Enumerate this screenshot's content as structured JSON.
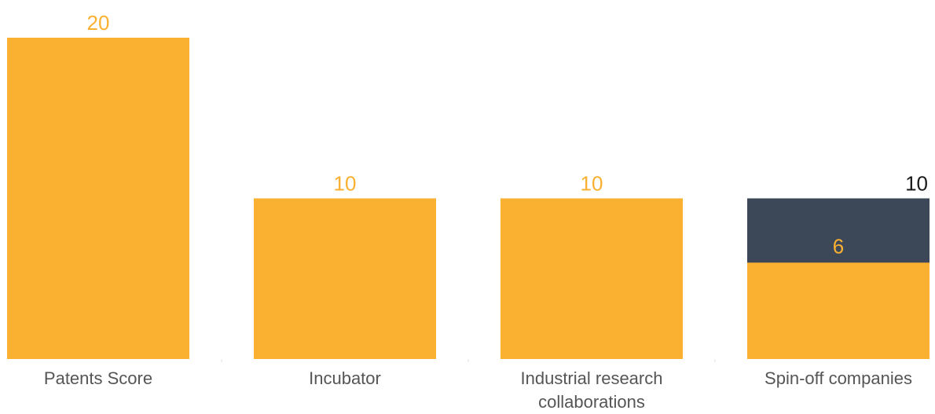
{
  "colors": {
    "accent": "#FAB030",
    "max_segment": "#3C4858",
    "tick_color": "#555555",
    "max_label_color": "#1A1A1A"
  },
  "chart_data": {
    "type": "bar",
    "categories": [
      "Patents Score",
      "Incubator",
      "Industrial research collaborations",
      "Spin-off companies"
    ],
    "category_lines": [
      [
        "Patents Score"
      ],
      [
        "Incubator"
      ],
      [
        "Industrial research",
        "collaborations"
      ],
      [
        "Spin-off companies"
      ]
    ],
    "series": [
      {
        "values": [
          20,
          10,
          10,
          6
        ]
      }
    ],
    "max_values": [
      null,
      null,
      null,
      10
    ],
    "title": "",
    "xlabel": "",
    "ylabel": "",
    "ylim": [
      0,
      20
    ],
    "grid": false,
    "legend": "none"
  }
}
